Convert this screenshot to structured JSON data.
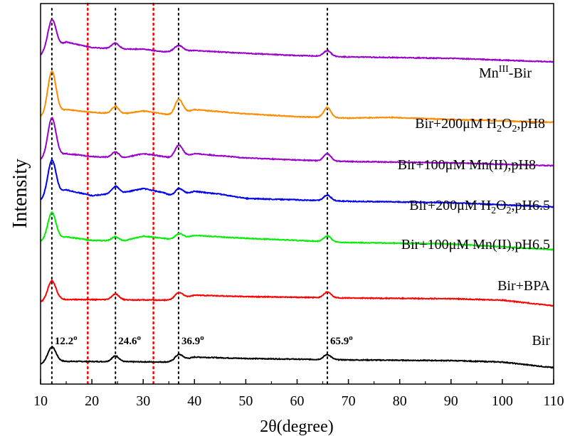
{
  "chart_data": {
    "type": "line",
    "xlabel": "2θ(degree)",
    "ylabel": "Intensity",
    "xlim": [
      10,
      110
    ],
    "x_ticks": [
      10,
      20,
      30,
      40,
      50,
      60,
      70,
      80,
      90,
      100,
      110
    ],
    "y_ticks_shown": false,
    "peak_lines": [
      {
        "x": 12.2,
        "label": "12.2",
        "sup": "o",
        "color": "#000000",
        "style": "dotted"
      },
      {
        "x": 24.6,
        "label": "24.6",
        "sup": "o",
        "color": "#000000",
        "style": "dotted"
      },
      {
        "x": 36.9,
        "label": "36.9",
        "sup": "o",
        "color": "#000000",
        "style": "dotted"
      },
      {
        "x": 65.9,
        "label": "65.9",
        "sup": "o",
        "color": "#000000",
        "style": "dotted"
      }
    ],
    "reference_lines": [
      {
        "x": 19.2,
        "color": "#ff0000",
        "style": "dotted"
      },
      {
        "x": 32.0,
        "color": "#ff0000",
        "style": "dotted"
      }
    ],
    "series": [
      {
        "name": "Bir",
        "label_parts": [
          {
            "t": "Bir"
          }
        ],
        "color": "#000000",
        "offset": 0,
        "scale": 1.0,
        "peaks": [
          [
            12.2,
            22,
            0.8
          ],
          [
            24.6,
            8,
            0.7
          ],
          [
            36.9,
            9,
            0.8
          ],
          [
            65.9,
            7,
            0.7
          ]
        ],
        "baseline": [
          [
            10,
            0
          ],
          [
            14,
            4
          ],
          [
            36,
            3
          ],
          [
            40,
            10
          ],
          [
            50,
            8
          ],
          [
            70,
            6
          ],
          [
            90,
            5
          ],
          [
            100,
            3
          ],
          [
            110,
            -5
          ]
        ]
      },
      {
        "name": "Bir+BPA",
        "label_parts": [
          {
            "t": "Bir+BPA"
          }
        ],
        "color": "#ff0000",
        "offset": 1,
        "scale": 1.0,
        "peaks": [
          [
            12.2,
            28,
            0.8
          ],
          [
            24.6,
            8,
            0.7
          ],
          [
            36.9,
            9,
            0.8
          ],
          [
            65.9,
            8,
            0.7
          ]
        ],
        "baseline": [
          [
            10,
            0
          ],
          [
            14,
            4
          ],
          [
            36,
            3
          ],
          [
            40,
            10
          ],
          [
            50,
            8
          ],
          [
            70,
            6
          ],
          [
            90,
            5
          ],
          [
            100,
            3
          ],
          [
            110,
            -5
          ]
        ]
      },
      {
        "name": "Bir+100μM Mn(II),pH6.5",
        "label_parts": [
          {
            "t": "Bir+100μM Mn(II),pH6.5"
          }
        ],
        "color": "#00ee00",
        "offset": 2,
        "scale": 1.0,
        "peaks": [
          [
            12.2,
            38,
            0.8
          ],
          [
            24.6,
            6,
            0.7
          ],
          [
            36.9,
            8,
            0.8
          ],
          [
            65.9,
            8,
            0.7
          ]
        ],
        "baseline": [
          [
            10,
            5
          ],
          [
            15,
            12
          ],
          [
            20,
            7
          ],
          [
            26,
            6
          ],
          [
            30,
            13
          ],
          [
            34,
            10
          ],
          [
            36,
            7
          ],
          [
            40,
            14
          ],
          [
            50,
            10
          ],
          [
            60,
            7
          ],
          [
            70,
            4
          ],
          [
            90,
            2
          ],
          [
            110,
            -6
          ]
        ]
      },
      {
        "name": "Bir+200μM H2O2,pH6.5",
        "label_parts": [
          {
            "t": "Bir+200μM  H"
          },
          {
            "t": "2",
            "sub": true
          },
          {
            "t": "O"
          },
          {
            "t": "2",
            "sub": true
          },
          {
            "t": ",pH6.5"
          }
        ],
        "color": "#0000ee",
        "offset": 3,
        "scale": 1.0,
        "peaks": [
          [
            12.2,
            50,
            0.8
          ],
          [
            24.6,
            10,
            0.7
          ],
          [
            36.9,
            10,
            0.8
          ],
          [
            65.9,
            8,
            0.7
          ]
        ],
        "baseline": [
          [
            10,
            5
          ],
          [
            15,
            20
          ],
          [
            20,
            12
          ],
          [
            26,
            16
          ],
          [
            30,
            22
          ],
          [
            34,
            16
          ],
          [
            36,
            10
          ],
          [
            40,
            18
          ],
          [
            45,
            14
          ],
          [
            50,
            8
          ],
          [
            60,
            6
          ],
          [
            70,
            4
          ],
          [
            90,
            2
          ],
          [
            110,
            -4
          ]
        ]
      },
      {
        "name": "Bir+100μM Mn(II),pH8",
        "label_parts": [
          {
            "t": "Bir+100μM  Mn(II),pH8"
          }
        ],
        "color": "#9900cc",
        "offset": 4,
        "scale": 1.0,
        "peaks": [
          [
            12.2,
            55,
            0.8
          ],
          [
            24.6,
            8,
            0.7
          ],
          [
            36.9,
            18,
            0.8
          ],
          [
            65.9,
            10,
            0.7
          ]
        ],
        "baseline": [
          [
            10,
            5
          ],
          [
            15,
            14
          ],
          [
            20,
            10
          ],
          [
            26,
            8
          ],
          [
            30,
            14
          ],
          [
            34,
            10
          ],
          [
            36,
            6
          ],
          [
            40,
            14
          ],
          [
            50,
            8
          ],
          [
            60,
            5
          ],
          [
            70,
            3
          ],
          [
            90,
            1
          ],
          [
            110,
            -3
          ]
        ]
      },
      {
        "name": "Bir+200μM H2O2,pH8",
        "label_parts": [
          {
            "t": "Bir+200μM H"
          },
          {
            "t": "2",
            "sub": true
          },
          {
            "t": "O"
          },
          {
            "t": "2",
            "sub": true
          },
          {
            "t": ",pH8"
          }
        ],
        "color": "#ff8c00",
        "offset": 5,
        "scale": 1.0,
        "peaks": [
          [
            12.2,
            60,
            0.8
          ],
          [
            24.6,
            10,
            0.7
          ],
          [
            36.9,
            22,
            0.8
          ],
          [
            65.9,
            14,
            0.7
          ]
        ],
        "baseline": [
          [
            10,
            5
          ],
          [
            15,
            16
          ],
          [
            20,
            12
          ],
          [
            26,
            10
          ],
          [
            30,
            14
          ],
          [
            34,
            10
          ],
          [
            36,
            6
          ],
          [
            40,
            16
          ],
          [
            50,
            10
          ],
          [
            60,
            6
          ],
          [
            70,
            4
          ],
          [
            78,
            5
          ],
          [
            90,
            2
          ],
          [
            110,
            -2
          ]
        ]
      },
      {
        "name": "MnIII-Bir",
        "label_parts": [
          {
            "t": "Mn"
          },
          {
            "t": "III",
            "sup": true
          },
          {
            "t": "-Bir"
          }
        ],
        "color": "#9900cc",
        "offset": 6,
        "scale": 1.0,
        "peaks": [
          [
            12.2,
            42,
            0.8
          ],
          [
            24.6,
            8,
            0.7
          ],
          [
            36.9,
            8,
            0.8
          ],
          [
            65.9,
            8,
            0.7
          ]
        ],
        "baseline": [
          [
            10,
            5
          ],
          [
            15,
            24
          ],
          [
            20,
            16
          ],
          [
            26,
            14
          ],
          [
            30,
            14
          ],
          [
            34,
            10
          ],
          [
            40,
            12
          ],
          [
            50,
            8
          ],
          [
            60,
            5
          ],
          [
            70,
            3
          ],
          [
            90,
            1
          ],
          [
            110,
            -4
          ]
        ]
      }
    ]
  }
}
